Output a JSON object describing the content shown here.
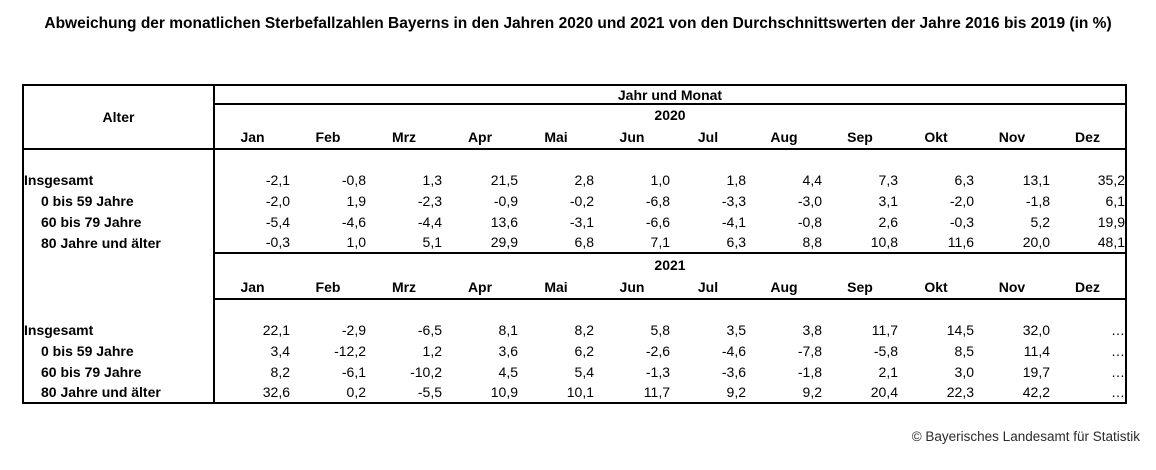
{
  "chart_data": {
    "type": "table",
    "title": "Abweichung der monatlichen Sterbefallzahlen Bayerns in den Jahren 2020 und 2021 von den Durchschnittswerten der Jahre 2016 bis 2019 (in %)",
    "corner_label": "Alter",
    "group_header": "Jahr und Monat",
    "months": [
      "Jan",
      "Feb",
      "Mrz",
      "Apr",
      "Mai",
      "Jun",
      "Jul",
      "Aug",
      "Sep",
      "Okt",
      "Nov",
      "Dez"
    ],
    "sections": [
      {
        "year": "2020",
        "rows": [
          {
            "label": "Insgesamt",
            "indent": false,
            "values": [
              "-2,1",
              "-0,8",
              "1,3",
              "21,5",
              "2,8",
              "1,0",
              "1,8",
              "4,4",
              "7,3",
              "6,3",
              "13,1",
              "35,2"
            ]
          },
          {
            "label": "0 bis 59 Jahre",
            "indent": true,
            "values": [
              "-2,0",
              "1,9",
              "-2,3",
              "-0,9",
              "-0,2",
              "-6,8",
              "-3,3",
              "-3,0",
              "3,1",
              "-2,0",
              "-1,8",
              "6,1"
            ]
          },
          {
            "label": "60 bis 79 Jahre",
            "indent": true,
            "values": [
              "-5,4",
              "-4,6",
              "-4,4",
              "13,6",
              "-3,1",
              "-6,6",
              "-4,1",
              "-0,8",
              "2,6",
              "-0,3",
              "5,2",
              "19,9"
            ]
          },
          {
            "label": "80 Jahre und älter",
            "indent": true,
            "values": [
              "-0,3",
              "1,0",
              "5,1",
              "29,9",
              "6,8",
              "7,1",
              "6,3",
              "8,8",
              "10,8",
              "11,6",
              "20,0",
              "48,1"
            ]
          }
        ]
      },
      {
        "year": "2021",
        "rows": [
          {
            "label": "Insgesamt",
            "indent": false,
            "values": [
              "22,1",
              "-2,9",
              "-6,5",
              "8,1",
              "8,2",
              "5,8",
              "3,5",
              "3,8",
              "11,7",
              "14,5",
              "32,0",
              "…"
            ]
          },
          {
            "label": "0 bis 59 Jahre",
            "indent": true,
            "values": [
              "3,4",
              "-12,2",
              "1,2",
              "3,6",
              "6,2",
              "-2,6",
              "-4,6",
              "-7,8",
              "-5,8",
              "8,5",
              "11,4",
              "…"
            ]
          },
          {
            "label": "60 bis 79 Jahre",
            "indent": true,
            "values": [
              "8,2",
              "-6,1",
              "-10,2",
              "4,5",
              "5,4",
              "-1,3",
              "-3,6",
              "-1,8",
              "2,1",
              "3,0",
              "19,7",
              "…"
            ]
          },
          {
            "label": "80 Jahre und älter",
            "indent": true,
            "values": [
              "32,6",
              "0,2",
              "-5,5",
              "10,9",
              "10,1",
              "11,7",
              "9,2",
              "9,2",
              "20,4",
              "22,3",
              "42,2",
              "…"
            ]
          }
        ]
      }
    ],
    "source": "© Bayerisches Landesamt für Statistik"
  }
}
